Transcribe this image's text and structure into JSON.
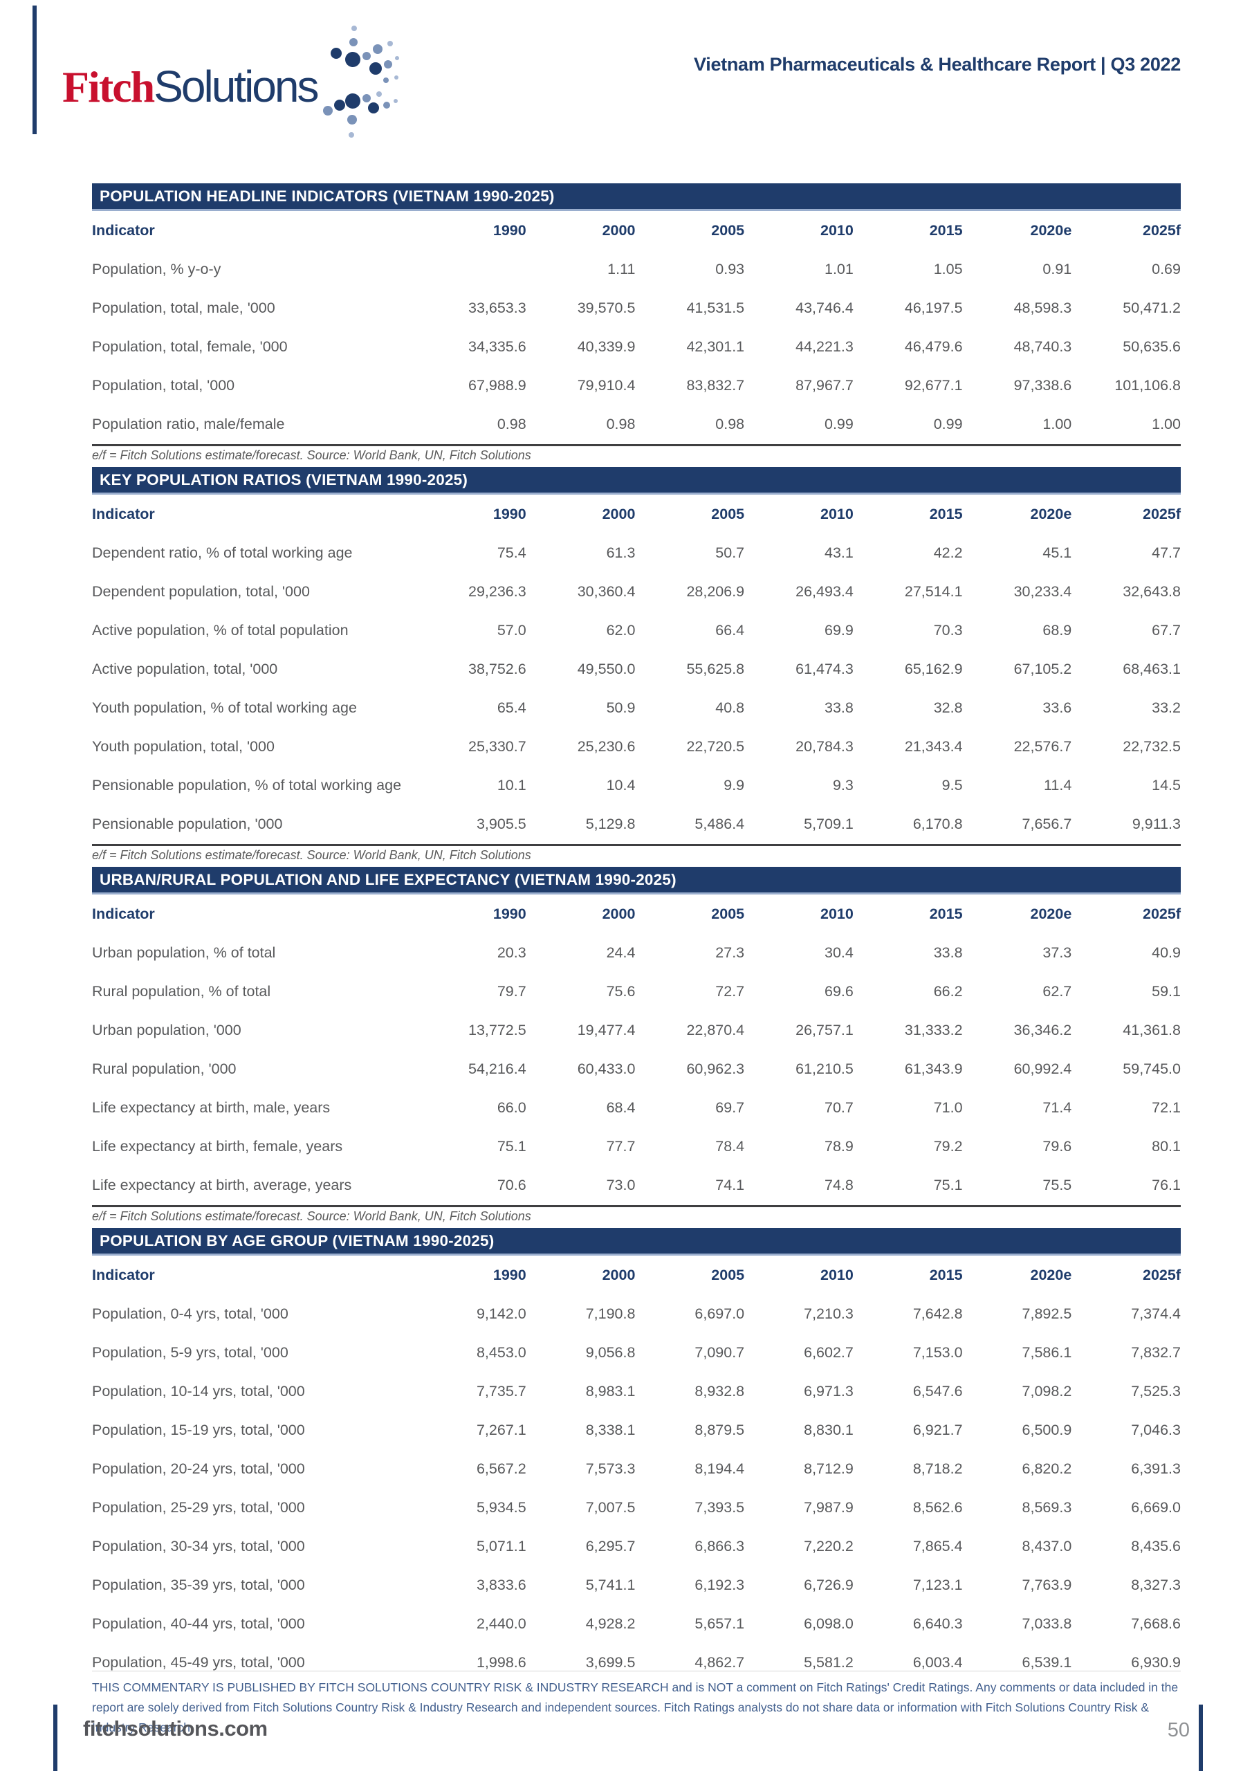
{
  "brand": {
    "fitch": "Fitch",
    "solutions": "Solutions"
  },
  "report_title": "Vietnam Pharmaceuticals & Healthcare Report | Q3 2022",
  "colors": {
    "navy": "#1F3C6B",
    "red": "#C8102E",
    "steel": "#7A92B8",
    "light_steel": "#A7B8D4"
  },
  "tables": [
    {
      "title": "POPULATION HEADLINE INDICATORS (VIETNAM 1990-2025)",
      "columns": [
        "Indicator",
        "1990",
        "2000",
        "2005",
        "2010",
        "2015",
        "2020e",
        "2025f"
      ],
      "rows": [
        {
          "label": "Population, % y-o-y",
          "values": [
            "",
            "1.11",
            "0.93",
            "1.01",
            "1.05",
            "0.91",
            "0.69"
          ]
        },
        {
          "label": "Population, total, male, '000",
          "values": [
            "33,653.3",
            "39,570.5",
            "41,531.5",
            "43,746.4",
            "46,197.5",
            "48,598.3",
            "50,471.2"
          ]
        },
        {
          "label": "Population, total, female, '000",
          "values": [
            "34,335.6",
            "40,339.9",
            "42,301.1",
            "44,221.3",
            "46,479.6",
            "48,740.3",
            "50,635.6"
          ]
        },
        {
          "label": "Population, total, '000",
          "values": [
            "67,988.9",
            "79,910.4",
            "83,832.7",
            "87,967.7",
            "92,677.1",
            "97,338.6",
            "101,106.8"
          ]
        },
        {
          "label": "Population ratio, male/female",
          "values": [
            "0.98",
            "0.98",
            "0.98",
            "0.99",
            "0.99",
            "1.00",
            "1.00"
          ]
        }
      ],
      "footnote": "e/f = Fitch Solutions estimate/forecast. Source: World Bank, UN, Fitch Solutions"
    },
    {
      "title": "KEY POPULATION RATIOS (VIETNAM 1990-2025)",
      "columns": [
        "Indicator",
        "1990",
        "2000",
        "2005",
        "2010",
        "2015",
        "2020e",
        "2025f"
      ],
      "rows": [
        {
          "label": "Dependent ratio, % of total working age",
          "values": [
            "75.4",
            "61.3",
            "50.7",
            "43.1",
            "42.2",
            "45.1",
            "47.7"
          ]
        },
        {
          "label": "Dependent population, total, '000",
          "values": [
            "29,236.3",
            "30,360.4",
            "28,206.9",
            "26,493.4",
            "27,514.1",
            "30,233.4",
            "32,643.8"
          ]
        },
        {
          "label": "Active population, % of total population",
          "values": [
            "57.0",
            "62.0",
            "66.4",
            "69.9",
            "70.3",
            "68.9",
            "67.7"
          ]
        },
        {
          "label": "Active population, total, '000",
          "values": [
            "38,752.6",
            "49,550.0",
            "55,625.8",
            "61,474.3",
            "65,162.9",
            "67,105.2",
            "68,463.1"
          ]
        },
        {
          "label": "Youth population, % of total working age",
          "values": [
            "65.4",
            "50.9",
            "40.8",
            "33.8",
            "32.8",
            "33.6",
            "33.2"
          ]
        },
        {
          "label": "Youth population, total, '000",
          "values": [
            "25,330.7",
            "25,230.6",
            "22,720.5",
            "20,784.3",
            "21,343.4",
            "22,576.7",
            "22,732.5"
          ]
        },
        {
          "label": "Pensionable population, % of total working age",
          "values": [
            "10.1",
            "10.4",
            "9.9",
            "9.3",
            "9.5",
            "11.4",
            "14.5"
          ]
        },
        {
          "label": "Pensionable population, '000",
          "values": [
            "3,905.5",
            "5,129.8",
            "5,486.4",
            "5,709.1",
            "6,170.8",
            "7,656.7",
            "9,911.3"
          ]
        }
      ],
      "footnote": "e/f = Fitch Solutions estimate/forecast. Source: World Bank, UN, Fitch Solutions"
    },
    {
      "title": "URBAN/RURAL POPULATION AND LIFE EXPECTANCY (VIETNAM 1990-2025)",
      "columns": [
        "Indicator",
        "1990",
        "2000",
        "2005",
        "2010",
        "2015",
        "2020e",
        "2025f"
      ],
      "rows": [
        {
          "label": "Urban population, % of total",
          "values": [
            "20.3",
            "24.4",
            "27.3",
            "30.4",
            "33.8",
            "37.3",
            "40.9"
          ]
        },
        {
          "label": "Rural population, % of total",
          "values": [
            "79.7",
            "75.6",
            "72.7",
            "69.6",
            "66.2",
            "62.7",
            "59.1"
          ]
        },
        {
          "label": "Urban population, '000",
          "values": [
            "13,772.5",
            "19,477.4",
            "22,870.4",
            "26,757.1",
            "31,333.2",
            "36,346.2",
            "41,361.8"
          ]
        },
        {
          "label": "Rural population, '000",
          "values": [
            "54,216.4",
            "60,433.0",
            "60,962.3",
            "61,210.5",
            "61,343.9",
            "60,992.4",
            "59,745.0"
          ]
        },
        {
          "label": "Life expectancy at birth, male, years",
          "values": [
            "66.0",
            "68.4",
            "69.7",
            "70.7",
            "71.0",
            "71.4",
            "72.1"
          ]
        },
        {
          "label": "Life expectancy at birth, female, years",
          "values": [
            "75.1",
            "77.7",
            "78.4",
            "78.9",
            "79.2",
            "79.6",
            "80.1"
          ]
        },
        {
          "label": "Life expectancy at birth, average, years",
          "values": [
            "70.6",
            "73.0",
            "74.1",
            "74.8",
            "75.1",
            "75.5",
            "76.1"
          ]
        }
      ],
      "footnote": "e/f = Fitch Solutions estimate/forecast. Source: World Bank, UN, Fitch Solutions"
    },
    {
      "title": "POPULATION BY AGE GROUP (VIETNAM 1990-2025)",
      "columns": [
        "Indicator",
        "1990",
        "2000",
        "2005",
        "2010",
        "2015",
        "2020e",
        "2025f"
      ],
      "rows": [
        {
          "label": "Population, 0-4 yrs, total, '000",
          "values": [
            "9,142.0",
            "7,190.8",
            "6,697.0",
            "7,210.3",
            "7,642.8",
            "7,892.5",
            "7,374.4"
          ]
        },
        {
          "label": "Population, 5-9 yrs, total, '000",
          "values": [
            "8,453.0",
            "9,056.8",
            "7,090.7",
            "6,602.7",
            "7,153.0",
            "7,586.1",
            "7,832.7"
          ]
        },
        {
          "label": "Population, 10-14 yrs, total, '000",
          "values": [
            "7,735.7",
            "8,983.1",
            "8,932.8",
            "6,971.3",
            "6,547.6",
            "7,098.2",
            "7,525.3"
          ]
        },
        {
          "label": "Population, 15-19 yrs, total, '000",
          "values": [
            "7,267.1",
            "8,338.1",
            "8,879.5",
            "8,830.1",
            "6,921.7",
            "6,500.9",
            "7,046.3"
          ]
        },
        {
          "label": "Population, 20-24 yrs, total, '000",
          "values": [
            "6,567.2",
            "7,573.3",
            "8,194.4",
            "8,712.9",
            "8,718.2",
            "6,820.2",
            "6,391.3"
          ]
        },
        {
          "label": "Population, 25-29 yrs, total, '000",
          "values": [
            "5,934.5",
            "7,007.5",
            "7,393.5",
            "7,987.9",
            "8,562.6",
            "8,569.3",
            "6,669.0"
          ]
        },
        {
          "label": "Population, 30-34 yrs, total, '000",
          "values": [
            "5,071.1",
            "6,295.7",
            "6,866.3",
            "7,220.2",
            "7,865.4",
            "8,437.0",
            "8,435.6"
          ]
        },
        {
          "label": "Population, 35-39 yrs, total, '000",
          "values": [
            "3,833.6",
            "5,741.1",
            "6,192.3",
            "6,726.9",
            "7,123.1",
            "7,763.9",
            "8,327.3"
          ]
        },
        {
          "label": "Population, 40-44 yrs, total, '000",
          "values": [
            "2,440.0",
            "4,928.2",
            "5,657.1",
            "6,098.0",
            "6,640.3",
            "7,033.8",
            "7,668.6"
          ]
        },
        {
          "label": "Population, 45-49 yrs, total, '000",
          "values": [
            "1,998.6",
            "3,699.5",
            "4,862.7",
            "5,581.2",
            "6,003.4",
            "6,539.1",
            "6,930.9"
          ]
        }
      ],
      "footnote": ""
    }
  ],
  "footer": {
    "disclaimer": "THIS COMMENTARY IS PUBLISHED BY FITCH SOLUTIONS COUNTRY RISK & INDUSTRY RESEARCH and is NOT a comment on Fitch Ratings' Credit Ratings. Any comments or data included in the report are solely derived from Fitch Solutions Country Risk & Industry Research and independent sources. Fitch Ratings analysts do not share data or information with Fitch Solutions Country Risk & Industry Research.",
    "site": "fitchsolutions.com",
    "page_number": "50"
  }
}
